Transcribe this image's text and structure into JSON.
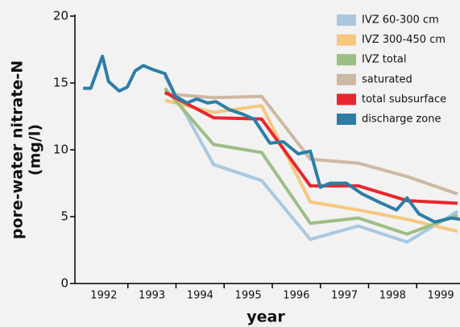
{
  "chart_data": {
    "type": "line",
    "xlabel": "year",
    "ylabel": [
      "pore-water nitrate-N",
      "(mg/l)"
    ],
    "xlim": [
      1991.9,
      1999.9
    ],
    "ylim": [
      0,
      20
    ],
    "yticks": [
      0,
      5,
      10,
      15,
      20
    ],
    "xticks": [
      {
        "value": 1992.5,
        "label": "1992"
      },
      {
        "value": 1993.5,
        "label": "1993"
      },
      {
        "value": 1994.5,
        "label": "1994"
      },
      {
        "value": 1995.5,
        "label": "1995"
      },
      {
        "value": 1996.5,
        "label": "1996"
      },
      {
        "value": 1997.5,
        "label": "1997"
      },
      {
        "value": 1998.5,
        "label": "1998"
      },
      {
        "value": 1999.5,
        "label": "1999"
      }
    ],
    "xtick_marks": [
      1993,
      1994,
      1995,
      1996,
      1997,
      1998,
      1999
    ],
    "legend": "top-right",
    "series": [
      {
        "name": "IVZ 60-300 cm",
        "color": "#a9c8e0",
        "x": [
          1993.77,
          1994.78,
          1995.78,
          1996.79,
          1997.79,
          1998.8,
          1999.85
        ],
        "values": [
          15.5,
          8.9,
          7.7,
          3.3,
          4.3,
          3.1,
          5.4
        ]
      },
      {
        "name": "IVZ 300-450 cm",
        "color": "#f7c77e",
        "x": [
          1993.77,
          1994.78,
          1995.78,
          1996.79,
          1997.79,
          1998.8,
          1999.85
        ],
        "values": [
          13.7,
          12.8,
          13.3,
          6.1,
          5.5,
          4.8,
          3.9
        ]
      },
      {
        "name": "IVZ total",
        "color": "#9bbf84",
        "x": [
          1993.77,
          1994.78,
          1995.78,
          1996.79,
          1997.79,
          1998.8,
          1999.85
        ],
        "values": [
          14.6,
          10.4,
          9.8,
          4.5,
          4.9,
          3.7,
          5.1
        ]
      },
      {
        "name": "saturated",
        "color": "#cdb8a3",
        "x": [
          1993.77,
          1994.78,
          1995.78,
          1996.79,
          1997.79,
          1998.8,
          1999.85
        ],
        "values": [
          14.2,
          13.9,
          14.0,
          9.3,
          9.0,
          8.0,
          6.7
        ]
      },
      {
        "name": "total subsurface",
        "color": "#e8262d",
        "x": [
          1993.77,
          1994.78,
          1995.78,
          1996.79,
          1997.79,
          1998.8,
          1999.85
        ],
        "values": [
          14.3,
          12.4,
          12.3,
          7.3,
          7.3,
          6.2,
          6.0
        ]
      },
      {
        "name": "discharge zone",
        "color": "#2c7ea6",
        "x": [
          1992.07,
          1992.23,
          1992.47,
          1992.6,
          1992.82,
          1992.99,
          1993.15,
          1993.32,
          1993.52,
          1993.77,
          1993.99,
          1994.23,
          1994.43,
          1994.66,
          1994.83,
          1995.11,
          1995.36,
          1995.62,
          1995.95,
          1996.23,
          1996.54,
          1996.79,
          1997.0,
          1997.2,
          1997.54,
          1997.87,
          1998.21,
          1998.58,
          1998.8,
          1999.05,
          1999.38,
          1999.72,
          1999.9
        ],
        "values": [
          14.6,
          14.6,
          17.0,
          15.1,
          14.4,
          14.7,
          15.9,
          16.3,
          16.0,
          15.7,
          14.0,
          13.5,
          13.8,
          13.5,
          13.6,
          13.0,
          12.7,
          12.3,
          10.5,
          10.6,
          9.7,
          9.9,
          7.2,
          7.5,
          7.5,
          6.7,
          6.1,
          5.5,
          6.4,
          5.2,
          4.6,
          4.9,
          4.8
        ]
      }
    ]
  }
}
